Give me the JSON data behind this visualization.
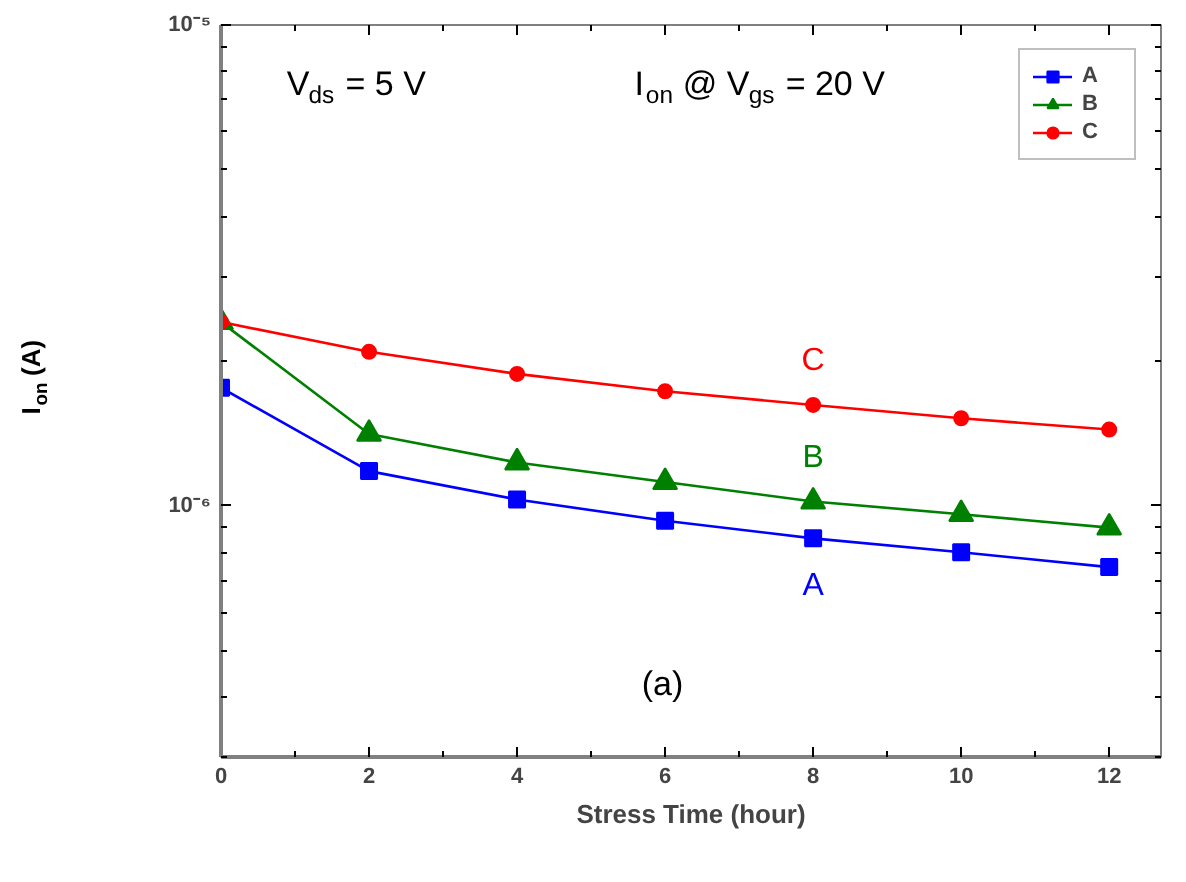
{
  "chart_data": {
    "type": "line",
    "xlabel": "Stress Time (hour)",
    "ylabel": "I$_{on}$ (A)",
    "x": [
      0,
      2,
      4,
      6,
      8,
      10,
      12
    ],
    "series": [
      {
        "name": "A",
        "color": "#0000ff",
        "marker": "square",
        "values": [
          1.76e-06,
          1.18e-06,
          1.03e-06,
          9.3e-07,
          8.55e-07,
          8e-07,
          7.45e-07
        ]
      },
      {
        "name": "B",
        "color": "#008000",
        "marker": "triangle",
        "values": [
          2.41e-06,
          1.41e-06,
          1.23e-06,
          1.12e-06,
          1.02e-06,
          9.6e-07,
          9e-07
        ]
      },
      {
        "name": "C",
        "color": "#ff0000",
        "marker": "circle",
        "values": [
          2.41e-06,
          2.09e-06,
          1.88e-06,
          1.73e-06,
          1.62e-06,
          1.52e-06,
          1.44e-06
        ]
      }
    ],
    "xlim": [
      0,
      12.7
    ],
    "xticks": [
      0,
      2,
      4,
      6,
      8,
      10,
      12
    ],
    "ylim": [
      3e-07,
      1e-05
    ],
    "yticks": [
      {
        "value": 1e-06,
        "label": "10⁻⁶"
      },
      {
        "value": 1e-05,
        "label": "10⁻⁵"
      }
    ],
    "log": "y",
    "grid": false,
    "legend": "top right",
    "line_style": "solid",
    "annotations": [
      "V$_{ds}$ = 5 V",
      "I$_{on}$ @ V$_{gs}$ = 20 V",
      "(a)"
    ]
  }
}
